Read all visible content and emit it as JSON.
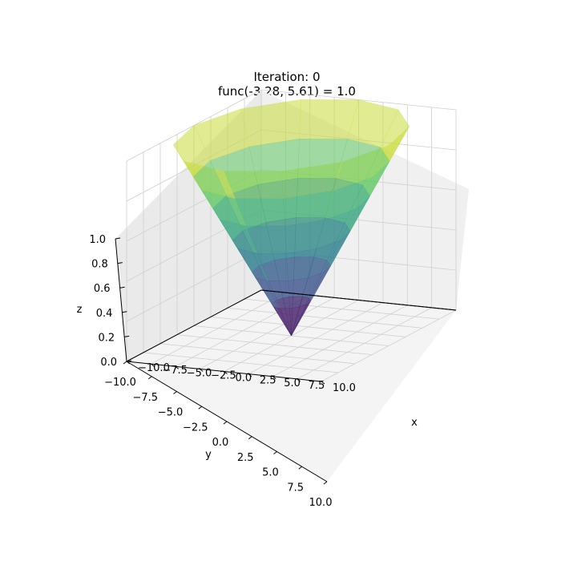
{
  "chart_data": {
    "type": "surface3d",
    "title_line1": "Iteration: 0",
    "title_line2": "func(-3.28, 5.61) = 1.0",
    "xlabel": "x",
    "ylabel": "y",
    "zlabel": "z",
    "x_ticks": [
      "−10.0",
      "−7.5",
      "−5.0",
      "−2.5",
      "0.0",
      "2.5",
      "5.0",
      "7.5",
      "10.0"
    ],
    "y_ticks": [
      "−10.0",
      "−7.5",
      "−5.0",
      "−2.5",
      "0.0",
      "2.5",
      "5.0",
      "7.5",
      "10.0"
    ],
    "z_ticks": [
      "0.0",
      "0.2",
      "0.4",
      "0.6",
      "0.8",
      "1.0"
    ],
    "x_range": [
      -10,
      10
    ],
    "y_range": [
      -10,
      10
    ],
    "z_range": [
      0,
      1
    ],
    "colormap": "viridis",
    "surface_color_low": "#440154",
    "surface_color_mid": "#5ec962",
    "surface_color_high": "#fde725",
    "grid": true
  }
}
